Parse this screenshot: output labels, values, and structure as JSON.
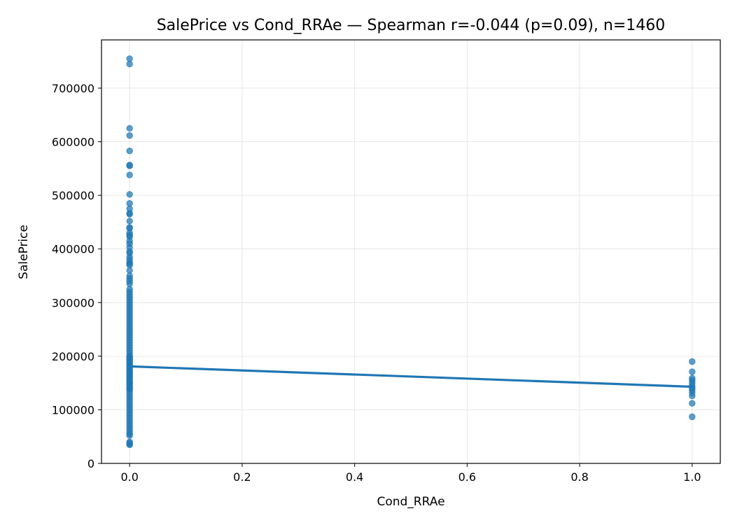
{
  "chart_data": {
    "type": "scatter",
    "title": "SalePrice vs Cond_RRAe — Spearman r=-0.044 (p=0.09), n=1460",
    "xlabel": "Cond_RRAe",
    "ylabel": "SalePrice",
    "xlim": [
      -0.05,
      1.05
    ],
    "ylim": [
      0,
      790000
    ],
    "xticks": [
      0.0,
      0.2,
      0.4,
      0.6,
      0.8,
      1.0
    ],
    "xtick_labels": [
      "0.0",
      "0.2",
      "0.4",
      "0.6",
      "0.8",
      "1.0"
    ],
    "yticks": [
      0,
      100000,
      200000,
      300000,
      400000,
      500000,
      600000,
      700000
    ],
    "ytick_labels": [
      "0",
      "100000",
      "200000",
      "300000",
      "400000",
      "500000",
      "600000",
      "700000"
    ],
    "grid": true,
    "point_color": "#1f77b4",
    "line_color": "#1f77b4",
    "series": [
      {
        "x": [
          0,
          0,
          0,
          0,
          0,
          0,
          0,
          0,
          0,
          0,
          0,
          0,
          0,
          0,
          0,
          0,
          0,
          0,
          0,
          0,
          0,
          0,
          0,
          0,
          0,
          0,
          0,
          0,
          0,
          0,
          0,
          0,
          0,
          0,
          0,
          0,
          0,
          0,
          0,
          0,
          0,
          0,
          0,
          0,
          0,
          0,
          0,
          0,
          0,
          0,
          0,
          0,
          0,
          0,
          0,
          0,
          0,
          0,
          0,
          0,
          0,
          0,
          0,
          0,
          0,
          0,
          0,
          0,
          0,
          0,
          0,
          0,
          0,
          0,
          0,
          0,
          0,
          0,
          0,
          0,
          0,
          0,
          0,
          0,
          0,
          0,
          0,
          0,
          0,
          0,
          0,
          0,
          0,
          0,
          0,
          0,
          0,
          0,
          0,
          0,
          0,
          0,
          0,
          0,
          0,
          0,
          0,
          0,
          1,
          1,
          1,
          1,
          1,
          1,
          1,
          1,
          1,
          1,
          1,
          1
        ],
        "y": [
          755000,
          745000,
          625000,
          611657,
          582933,
          556581,
          555000,
          538000,
          501837,
          485000,
          475000,
          466500,
          465000,
          451950,
          440000,
          438780,
          430000,
          426000,
          423000,
          415298,
          410000,
          402861,
          395000,
          392500,
          385000,
          380000,
          375000,
          372500,
          369900,
          360000,
          350000,
          345000,
          340000,
          335000,
          325000,
          320000,
          315000,
          310000,
          305000,
          300000,
          295000,
          290000,
          285000,
          280000,
          275000,
          270000,
          265000,
          260000,
          255000,
          250000,
          245000,
          240000,
          235000,
          230000,
          225000,
          220000,
          215000,
          210000,
          205000,
          200000,
          195000,
          190000,
          185000,
          180000,
          175000,
          170000,
          165000,
          160000,
          155000,
          150000,
          145000,
          140000,
          135000,
          130000,
          125000,
          120000,
          115000,
          110000,
          105000,
          100000,
          95000,
          90000,
          85000,
          80000,
          75000,
          70000,
          65000,
          60000,
          55000,
          52000,
          40000,
          37900,
          35311,
          34900,
          139000,
          142000,
          148000,
          151000,
          157000,
          162000,
          167000,
          172000,
          178000,
          182000,
          188000,
          193000,
          197000,
          199000,
          190000,
          171000,
          159000,
          155000,
          145000,
          141000,
          137000,
          132000,
          126000,
          112000,
          87000,
          150000
        ],
        "name": ""
      }
    ],
    "trend_line": {
      "x": [
        0.0,
        1.0
      ],
      "y": [
        181000,
        143000
      ]
    }
  }
}
